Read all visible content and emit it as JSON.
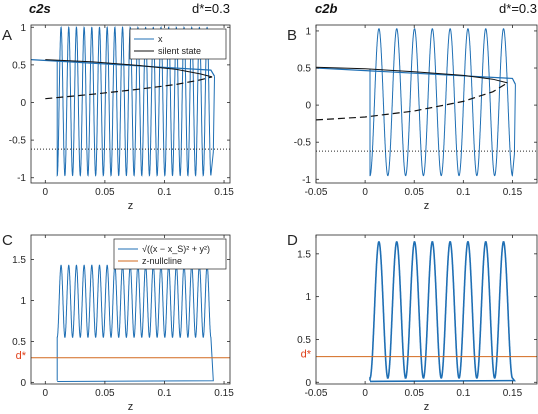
{
  "figure": {
    "headers": [
      {
        "label": "c2s",
        "dstar": "d*=0.3"
      },
      {
        "label": "c2b",
        "dstar": "d*=0.3"
      }
    ]
  },
  "colors": {
    "blue": "#1f6fb4",
    "black": "#111111",
    "orange": "#d2691e",
    "dstar_text": "#e0401a",
    "axis": "#262626"
  },
  "chart_data": [
    {
      "type": "line",
      "panel_letter": "A",
      "xlabel": "z",
      "xlim": [
        -0.012,
        0.155
      ],
      "ylim": [
        -1.07,
        1.03
      ],
      "xticks": [
        "0",
        "0.05",
        "0.1",
        "0.15"
      ],
      "xtick_values": [
        0,
        0.05,
        0.1,
        0.15
      ],
      "yticks": [
        "-1",
        "-0.5",
        "0",
        "0.5",
        "1"
      ],
      "ytick_values": [
        -1,
        -0.5,
        0,
        0.5,
        1
      ],
      "legend": [
        "x",
        "silent state"
      ],
      "legend_position": "top-right",
      "series": [
        {
          "name": "x",
          "color": "#1f6fb4",
          "kind": "oscillation",
          "z_start": 0.01,
          "z_end": 0.139,
          "cycles": 20,
          "y_min": -0.97,
          "y_max": 1.0,
          "return_top": 0.55,
          "return_bottom": -0.66
        },
        {
          "name": "silent state",
          "color": "#111111",
          "kind": "silent",
          "upper": {
            "z": [
              0.0,
              0.04,
              0.08,
              0.11,
              0.13,
              0.14
            ],
            "y": [
              0.57,
              0.54,
              0.49,
              0.44,
              0.38,
              0.34
            ]
          },
          "lower": {
            "z": [
              0.0,
              0.04,
              0.08,
              0.11,
              0.13,
              0.14
            ],
            "y": [
              0.05,
              0.11,
              0.18,
              0.24,
              0.3,
              0.34
            ]
          }
        },
        {
          "name": "threshold",
          "color": "#262626",
          "kind": "dotted",
          "y": -0.62
        }
      ]
    },
    {
      "type": "line",
      "panel_letter": "B",
      "xlabel": "z",
      "xlim": [
        -0.05,
        0.175
      ],
      "ylim": [
        -1.05,
        1.08
      ],
      "xticks": [
        "-0.05",
        "0",
        "0.05",
        "0.1",
        "0.15"
      ],
      "xtick_values": [
        -0.05,
        0,
        0.05,
        0.1,
        0.15
      ],
      "yticks": [
        "-1",
        "-0.5",
        "0",
        "0.5",
        "1"
      ],
      "ytick_values": [
        -1,
        -0.5,
        0,
        0.5,
        1
      ],
      "series": [
        {
          "name": "x",
          "color": "#1f6fb4",
          "kind": "oscillation",
          "z_start": 0.005,
          "z_end": 0.15,
          "cycles": 8,
          "y_min": -0.95,
          "y_max": 1.03,
          "return_top": 0.48,
          "return_bottom": -0.66
        },
        {
          "name": "silent state",
          "color": "#111111",
          "kind": "silent",
          "upper": {
            "z": [
              -0.05,
              0.0,
              0.05,
              0.1,
              0.13,
              0.145
            ],
            "y": [
              0.51,
              0.49,
              0.45,
              0.4,
              0.35,
              0.3
            ]
          },
          "lower": {
            "z": [
              -0.05,
              0.0,
              0.05,
              0.1,
              0.13,
              0.145
            ],
            "y": [
              -0.2,
              -0.16,
              -0.08,
              0.05,
              0.18,
              0.3
            ]
          }
        },
        {
          "name": "threshold",
          "color": "#262626",
          "kind": "dotted",
          "y": -0.62
        }
      ]
    },
    {
      "type": "line",
      "panel_letter": "C",
      "xlabel": "z",
      "xlim": [
        -0.012,
        0.155
      ],
      "ylim": [
        -0.02,
        1.8
      ],
      "xticks": [
        "0",
        "0.05",
        "0.1",
        "0.15"
      ],
      "xtick_values": [
        0,
        0.05,
        0.1,
        0.15
      ],
      "yticks": [
        "0",
        "0.5",
        "1",
        "1.5"
      ],
      "ytick_values": [
        0,
        0.5,
        1,
        1.5
      ],
      "dstar_label": "d*",
      "dstar_value": 0.3,
      "legend": [
        "√((x − x_S)² + y²)",
        "z-nullcline"
      ],
      "legend_position": "top-right",
      "series": [
        {
          "name": "√((x − x_S)² + y²)",
          "color": "#1f6fb4",
          "kind": "distance",
          "z_start": 0.01,
          "z_end": 0.139,
          "cycles": 20,
          "y_min": 0.55,
          "y_max": 1.43
        },
        {
          "name": "z-nullcline",
          "color": "#d2691e",
          "kind": "hline",
          "y": 0.3
        }
      ]
    },
    {
      "type": "line",
      "panel_letter": "D",
      "xlabel": "z",
      "xlim": [
        -0.05,
        0.175
      ],
      "ylim": [
        -0.02,
        1.72
      ],
      "xticks": [
        "-0.05",
        "0",
        "0.05",
        "0.1",
        "0.15"
      ],
      "xtick_values": [
        -0.05,
        0,
        0.05,
        0.1,
        0.15
      ],
      "yticks": [
        "0",
        "0.5",
        "1",
        "1.5"
      ],
      "ytick_values": [
        0,
        0.5,
        1,
        1.5
      ],
      "dstar_label": "d*",
      "dstar_value": 0.3,
      "series": [
        {
          "name": "distance",
          "color": "#1f6fb4",
          "kind": "distance",
          "z_start": 0.005,
          "z_end": 0.15,
          "cycles": 8,
          "y_min": 0.05,
          "y_max": 1.64
        },
        {
          "name": "z-nullcline",
          "color": "#d2691e",
          "kind": "hline",
          "y": 0.3
        }
      ]
    }
  ]
}
